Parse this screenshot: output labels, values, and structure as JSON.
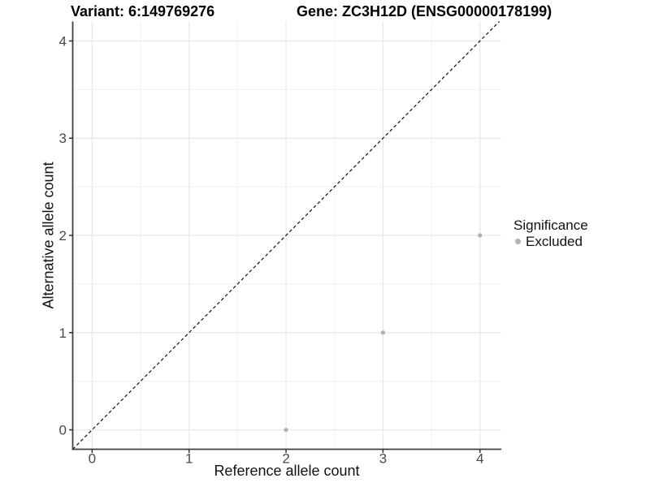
{
  "chart_data": {
    "type": "scatter",
    "title_left": "Variant: 6:149769276",
    "title_right": "Gene: ZC3H12D (ENSG00000178199)",
    "xlabel": "Reference allele count",
    "ylabel": "Alternative allele count",
    "xlim": [
      -0.2,
      4.22
    ],
    "ylim": [
      -0.2,
      4.2
    ],
    "x_ticks": [
      "0",
      "1",
      "2",
      "3",
      "4"
    ],
    "y_ticks": [
      "0",
      "1",
      "2",
      "3",
      "4"
    ],
    "x_minor": [
      0.5,
      1.5,
      2.5,
      3.5
    ],
    "y_minor": [
      0.5,
      1.5,
      2.5,
      3.5
    ],
    "grid": {
      "major": true,
      "minor": true,
      "background": "#ffffff"
    },
    "reference_line": {
      "type": "identity",
      "style": "dashed",
      "color": "#111111",
      "from": -0.2,
      "to": 4.2
    },
    "series": [
      {
        "name": "Excluded",
        "color": "#b2b2b2",
        "points": [
          {
            "x": 2,
            "y": 0
          },
          {
            "x": 3,
            "y": 1
          },
          {
            "x": 4,
            "y": 2
          }
        ]
      }
    ],
    "legend": {
      "title": "Significance",
      "position": "right",
      "items": [
        {
          "label": "Excluded",
          "color": "#b2b2b2"
        }
      ]
    },
    "colors": {
      "axis_line": "#3f3f3f",
      "tick_mark": "#333333",
      "tick_label": "#4a4a4a",
      "grid_major": "#e7e7e7",
      "grid_minor": "#f1f1f1"
    }
  }
}
